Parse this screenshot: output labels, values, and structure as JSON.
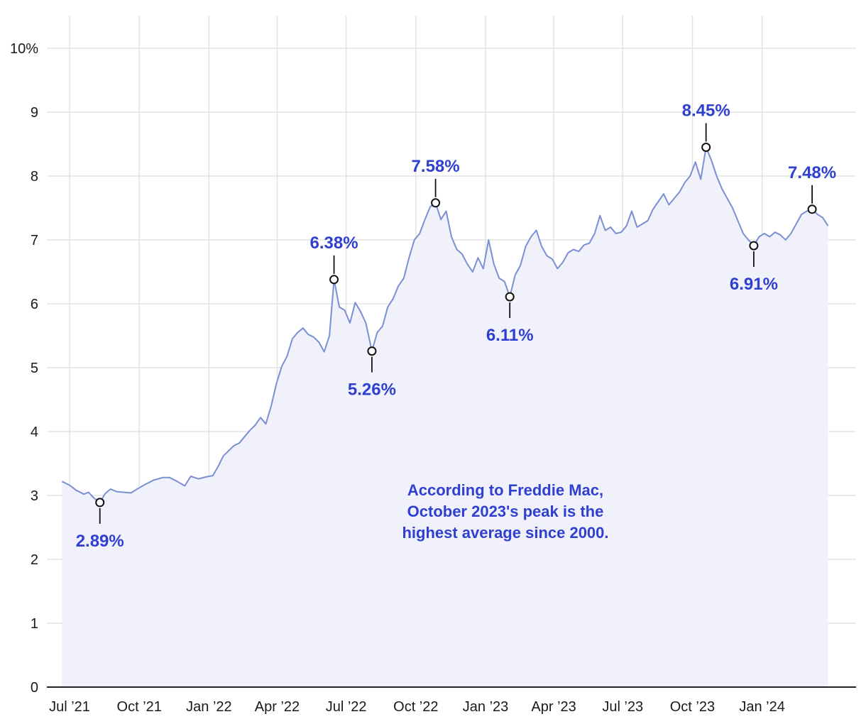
{
  "chart_data": {
    "type": "area",
    "title": "",
    "xlabel": "",
    "ylabel": "",
    "ylim": [
      0,
      10
    ],
    "grid": true,
    "y_tick_labels": [
      "0",
      "1",
      "2",
      "3",
      "4",
      "5",
      "6",
      "7",
      "8",
      "9",
      "10%"
    ],
    "x_tick_labels": [
      {
        "date": "2021-07-01",
        "label": "Jul ’21"
      },
      {
        "date": "2021-10-01",
        "label": "Oct ’21"
      },
      {
        "date": "2022-01-01",
        "label": "Jan ’22"
      },
      {
        "date": "2022-04-01",
        "label": "Apr ’22"
      },
      {
        "date": "2022-07-01",
        "label": "Jul ’22"
      },
      {
        "date": "2022-10-01",
        "label": "Oct ’22"
      },
      {
        "date": "2023-01-01",
        "label": "Jan ’23"
      },
      {
        "date": "2023-04-01",
        "label": "Apr ’23"
      },
      {
        "date": "2023-07-01",
        "label": "Jul ’23"
      },
      {
        "date": "2023-10-01",
        "label": "Oct ’23"
      },
      {
        "date": "2024-01-01",
        "label": "Jan ’24"
      }
    ],
    "x_range": [
      "2021-06-01",
      "2024-05-04"
    ],
    "series": [
      {
        "color": "#7b8fd4",
        "fill": "#f0f1fa",
        "points": [
          [
            "2021-06-21",
            3.22
          ],
          [
            "2021-07-01",
            3.16
          ],
          [
            "2021-07-10",
            3.08
          ],
          [
            "2021-07-20",
            3.02
          ],
          [
            "2021-07-26",
            3.05
          ],
          [
            "2021-08-02",
            2.96
          ],
          [
            "2021-08-10",
            2.89
          ],
          [
            "2021-08-17",
            3.03
          ],
          [
            "2021-08-24",
            3.1
          ],
          [
            "2021-09-01",
            3.06
          ],
          [
            "2021-09-10",
            3.05
          ],
          [
            "2021-09-20",
            3.04
          ],
          [
            "2021-10-01",
            3.12
          ],
          [
            "2021-10-10",
            3.18
          ],
          [
            "2021-10-20",
            3.24
          ],
          [
            "2021-11-01",
            3.28
          ],
          [
            "2021-11-10",
            3.28
          ],
          [
            "2021-11-20",
            3.22
          ],
          [
            "2021-11-30",
            3.15
          ],
          [
            "2021-12-08",
            3.3
          ],
          [
            "2021-12-18",
            3.26
          ],
          [
            "2021-12-28",
            3.29
          ],
          [
            "2022-01-06",
            3.31
          ],
          [
            "2022-01-13",
            3.45
          ],
          [
            "2022-01-20",
            3.62
          ],
          [
            "2022-01-27",
            3.7
          ],
          [
            "2022-02-03",
            3.78
          ],
          [
            "2022-02-10",
            3.82
          ],
          [
            "2022-02-17",
            3.92
          ],
          [
            "2022-02-24",
            4.02
          ],
          [
            "2022-03-03",
            4.1
          ],
          [
            "2022-03-10",
            4.22
          ],
          [
            "2022-03-17",
            4.12
          ],
          [
            "2022-03-24",
            4.4
          ],
          [
            "2022-03-31",
            4.75
          ],
          [
            "2022-04-07",
            5.02
          ],
          [
            "2022-04-14",
            5.18
          ],
          [
            "2022-04-21",
            5.45
          ],
          [
            "2022-04-28",
            5.55
          ],
          [
            "2022-05-05",
            5.62
          ],
          [
            "2022-05-12",
            5.52
          ],
          [
            "2022-05-19",
            5.48
          ],
          [
            "2022-05-26",
            5.4
          ],
          [
            "2022-06-02",
            5.25
          ],
          [
            "2022-06-09",
            5.5
          ],
          [
            "2022-06-15",
            6.38
          ],
          [
            "2022-06-22",
            5.95
          ],
          [
            "2022-06-29",
            5.9
          ],
          [
            "2022-07-06",
            5.7
          ],
          [
            "2022-07-13",
            6.02
          ],
          [
            "2022-07-20",
            5.88
          ],
          [
            "2022-07-27",
            5.7
          ],
          [
            "2022-08-04",
            5.26
          ],
          [
            "2022-08-11",
            5.55
          ],
          [
            "2022-08-18",
            5.65
          ],
          [
            "2022-08-25",
            5.95
          ],
          [
            "2022-09-01",
            6.08
          ],
          [
            "2022-09-08",
            6.28
          ],
          [
            "2022-09-15",
            6.4
          ],
          [
            "2022-09-22",
            6.72
          ],
          [
            "2022-09-29",
            7.0
          ],
          [
            "2022-10-06",
            7.1
          ],
          [
            "2022-10-13",
            7.32
          ],
          [
            "2022-10-20",
            7.52
          ],
          [
            "2022-10-27",
            7.58
          ],
          [
            "2022-11-03",
            7.32
          ],
          [
            "2022-11-10",
            7.45
          ],
          [
            "2022-11-17",
            7.05
          ],
          [
            "2022-11-24",
            6.85
          ],
          [
            "2022-12-01",
            6.78
          ],
          [
            "2022-12-08",
            6.62
          ],
          [
            "2022-12-15",
            6.5
          ],
          [
            "2022-12-22",
            6.72
          ],
          [
            "2022-12-29",
            6.55
          ],
          [
            "2023-01-05",
            7.0
          ],
          [
            "2023-01-12",
            6.62
          ],
          [
            "2023-01-19",
            6.4
          ],
          [
            "2023-01-26",
            6.35
          ],
          [
            "2023-02-02",
            6.11
          ],
          [
            "2023-02-09",
            6.45
          ],
          [
            "2023-02-16",
            6.6
          ],
          [
            "2023-02-23",
            6.9
          ],
          [
            "2023-03-02",
            7.05
          ],
          [
            "2023-03-09",
            7.15
          ],
          [
            "2023-03-16",
            6.9
          ],
          [
            "2023-03-23",
            6.75
          ],
          [
            "2023-03-30",
            6.7
          ],
          [
            "2023-04-06",
            6.55
          ],
          [
            "2023-04-13",
            6.65
          ],
          [
            "2023-04-20",
            6.8
          ],
          [
            "2023-04-27",
            6.85
          ],
          [
            "2023-05-04",
            6.82
          ],
          [
            "2023-05-11",
            6.92
          ],
          [
            "2023-05-18",
            6.95
          ],
          [
            "2023-05-25",
            7.1
          ],
          [
            "2023-06-01",
            7.38
          ],
          [
            "2023-06-08",
            7.15
          ],
          [
            "2023-06-15",
            7.2
          ],
          [
            "2023-06-22",
            7.1
          ],
          [
            "2023-06-29",
            7.12
          ],
          [
            "2023-07-06",
            7.22
          ],
          [
            "2023-07-13",
            7.45
          ],
          [
            "2023-07-20",
            7.2
          ],
          [
            "2023-07-27",
            7.25
          ],
          [
            "2023-08-03",
            7.3
          ],
          [
            "2023-08-10",
            7.48
          ],
          [
            "2023-08-17",
            7.6
          ],
          [
            "2023-08-24",
            7.72
          ],
          [
            "2023-08-31",
            7.55
          ],
          [
            "2023-09-07",
            7.65
          ],
          [
            "2023-09-14",
            7.75
          ],
          [
            "2023-09-21",
            7.9
          ],
          [
            "2023-09-28",
            8.0
          ],
          [
            "2023-10-05",
            8.22
          ],
          [
            "2023-10-12",
            7.95
          ],
          [
            "2023-10-19",
            8.45
          ],
          [
            "2023-10-26",
            8.25
          ],
          [
            "2023-11-02",
            8.0
          ],
          [
            "2023-11-09",
            7.8
          ],
          [
            "2023-11-16",
            7.65
          ],
          [
            "2023-11-23",
            7.5
          ],
          [
            "2023-11-30",
            7.3
          ],
          [
            "2023-12-07",
            7.1
          ],
          [
            "2023-12-14",
            7.0
          ],
          [
            "2023-12-21",
            6.91
          ],
          [
            "2023-12-28",
            7.05
          ],
          [
            "2024-01-04",
            7.1
          ],
          [
            "2024-01-11",
            7.05
          ],
          [
            "2024-01-18",
            7.12
          ],
          [
            "2024-01-25",
            7.08
          ],
          [
            "2024-02-01",
            7.0
          ],
          [
            "2024-02-08",
            7.1
          ],
          [
            "2024-02-15",
            7.25
          ],
          [
            "2024-02-22",
            7.4
          ],
          [
            "2024-02-29",
            7.45
          ],
          [
            "2024-03-07",
            7.48
          ],
          [
            "2024-03-14",
            7.4
          ],
          [
            "2024-03-21",
            7.35
          ],
          [
            "2024-03-28",
            7.22
          ]
        ]
      }
    ],
    "annotations": [
      {
        "date": "2021-08-10",
        "value": 2.89,
        "label": "2.89%",
        "position": "below"
      },
      {
        "date": "2022-06-15",
        "value": 6.38,
        "label": "6.38%",
        "position": "above"
      },
      {
        "date": "2022-08-04",
        "value": 5.26,
        "label": "5.26%",
        "position": "below"
      },
      {
        "date": "2022-10-27",
        "value": 7.58,
        "label": "7.58%",
        "position": "above"
      },
      {
        "date": "2023-02-02",
        "value": 6.11,
        "label": "6.11%",
        "position": "below"
      },
      {
        "date": "2023-10-19",
        "value": 8.45,
        "label": "8.45%",
        "position": "above"
      },
      {
        "date": "2023-12-21",
        "value": 6.91,
        "label": "6.91%",
        "position": "below"
      },
      {
        "date": "2024-03-07",
        "value": 7.48,
        "label": "7.48%",
        "position": "above"
      }
    ],
    "note": [
      "According to Freddie Mac,",
      "October 2023's peak is the",
      "highest average since 2000."
    ]
  }
}
